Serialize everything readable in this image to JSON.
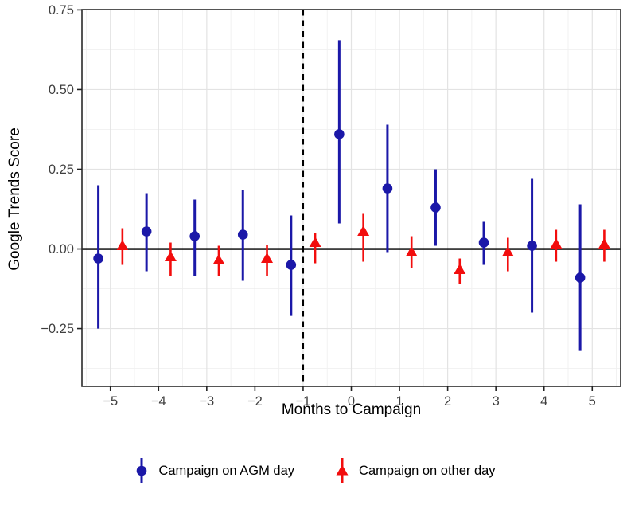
{
  "chart_data": {
    "type": "pointrange-scatter",
    "title": "",
    "xlabel": "Months to Campaign",
    "ylabel": "Google Trends Score",
    "xlim": [
      -5.59,
      5.59
    ],
    "ylim": [
      -0.431,
      0.751
    ],
    "grid": "on",
    "legend_position": "bottom",
    "x_ticks": {
      "values": [
        -5,
        -4,
        -3,
        -2,
        -1,
        0,
        1,
        2,
        3,
        4,
        5
      ],
      "labels": [
        "−5",
        "−4",
        "−3",
        "−2",
        "−1",
        "0",
        "1",
        "2",
        "3",
        "4",
        "5"
      ]
    },
    "y_ticks": {
      "values": [
        -0.25,
        0.0,
        0.25,
        0.5,
        0.75
      ],
      "labels": [
        "−0.25",
        "0.00",
        "0.25",
        "0.50",
        "0.75"
      ]
    },
    "x_minor_step": 0.5,
    "y_minor_step": 0.125,
    "reference_lines": {
      "hline_y": 0,
      "vline_x": -1,
      "vline_style": "dashed",
      "color": "#000000"
    },
    "series": [
      {
        "name": "Campaign on AGM day",
        "marker": "circle",
        "color": "#1b18a8",
        "x_offset": -0.25,
        "points": [
          {
            "month": -5,
            "y": -0.03,
            "lo": -0.25,
            "hi": 0.2
          },
          {
            "month": -4,
            "y": 0.055,
            "lo": -0.07,
            "hi": 0.175
          },
          {
            "month": -3,
            "y": 0.04,
            "lo": -0.085,
            "hi": 0.155
          },
          {
            "month": -2,
            "y": 0.045,
            "lo": -0.1,
            "hi": 0.185
          },
          {
            "month": -1,
            "y": -0.05,
            "lo": -0.21,
            "hi": 0.105
          },
          {
            "month": 0,
            "y": 0.36,
            "lo": 0.08,
            "hi": 0.655
          },
          {
            "month": 1,
            "y": 0.19,
            "lo": -0.01,
            "hi": 0.39
          },
          {
            "month": 2,
            "y": 0.13,
            "lo": 0.01,
            "hi": 0.25
          },
          {
            "month": 3,
            "y": 0.02,
            "lo": -0.05,
            "hi": 0.085
          },
          {
            "month": 4,
            "y": 0.01,
            "lo": -0.2,
            "hi": 0.22
          },
          {
            "month": 5,
            "y": -0.09,
            "lo": -0.32,
            "hi": 0.14
          }
        ]
      },
      {
        "name": "Campaign on other day",
        "marker": "triangle",
        "color": "#f20d0d",
        "x_offset": 0.25,
        "points": [
          {
            "month": -5,
            "y": 0.01,
            "lo": -0.05,
            "hi": 0.065
          },
          {
            "month": -4,
            "y": -0.025,
            "lo": -0.085,
            "hi": 0.02
          },
          {
            "month": -3,
            "y": -0.035,
            "lo": -0.085,
            "hi": 0.01
          },
          {
            "month": -2,
            "y": -0.03,
            "lo": -0.085,
            "hi": 0.012
          },
          {
            "month": -1,
            "y": 0.02,
            "lo": -0.045,
            "hi": 0.05
          },
          {
            "month": 0,
            "y": 0.055,
            "lo": -0.04,
            "hi": 0.11
          },
          {
            "month": 1,
            "y": -0.01,
            "lo": -0.06,
            "hi": 0.04
          },
          {
            "month": 2,
            "y": -0.065,
            "lo": -0.11,
            "hi": -0.03
          },
          {
            "month": 3,
            "y": -0.01,
            "lo": -0.07,
            "hi": 0.035
          },
          {
            "month": 4,
            "y": 0.015,
            "lo": -0.04,
            "hi": 0.06
          },
          {
            "month": 5,
            "y": 0.015,
            "lo": -0.04,
            "hi": 0.06
          }
        ]
      }
    ],
    "colors": {
      "panel_border": "#2b2b2b",
      "grid_major": "#e3e3e3",
      "grid_minor": "#f0f0f0",
      "tick_text": "#3f3f3f",
      "background": "#ffffff"
    }
  }
}
